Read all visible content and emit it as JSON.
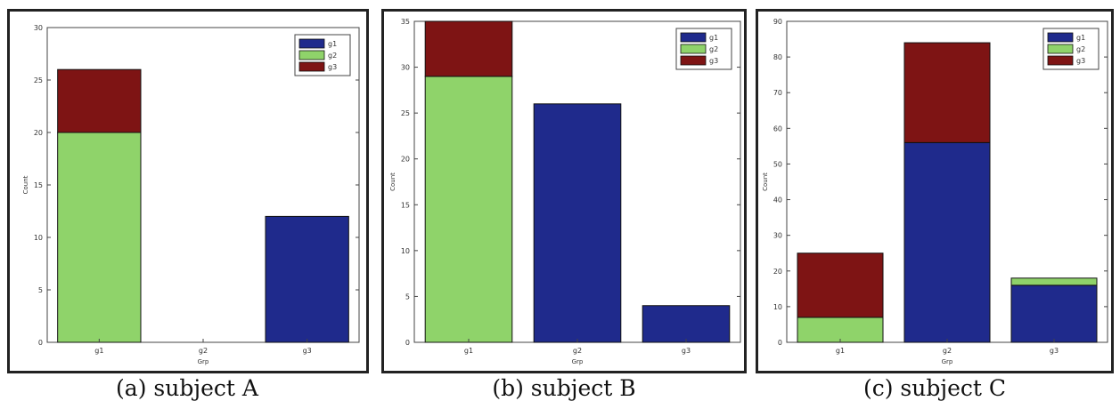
{
  "chart_data": [
    {
      "type": "bar",
      "stacked": true,
      "categories": [
        "g1",
        "g2",
        "g3"
      ],
      "series": [
        {
          "name": "g1",
          "color": "#1f2a8c",
          "values": [
            0,
            0,
            12
          ]
        },
        {
          "name": "g2",
          "color": "#8fd36a",
          "values": [
            20,
            0,
            0
          ]
        },
        {
          "name": "g3",
          "color": "#7e1414",
          "values": [
            6,
            0,
            0
          ]
        }
      ],
      "ylim": [
        0,
        30
      ],
      "yticks": [
        0,
        5,
        10,
        15,
        20,
        25,
        30
      ],
      "xlabel": "Grp",
      "ylabel": "Count",
      "legend_position": "top-right",
      "caption": "(a) subject A"
    },
    {
      "type": "bar",
      "stacked": true,
      "categories": [
        "g1",
        "g2",
        "g3"
      ],
      "series": [
        {
          "name": "g1",
          "color": "#1f2a8c",
          "values": [
            0,
            26,
            4
          ]
        },
        {
          "name": "g2",
          "color": "#8fd36a",
          "values": [
            29,
            0,
            0
          ]
        },
        {
          "name": "g3",
          "color": "#7e1414",
          "values": [
            6,
            0,
            0
          ]
        }
      ],
      "ylim": [
        0,
        35
      ],
      "yticks": [
        0,
        5,
        10,
        15,
        20,
        25,
        30,
        35
      ],
      "xlabel": "Grp",
      "ylabel": "Count",
      "legend_position": "top-right",
      "caption": "(b) subject B"
    },
    {
      "type": "bar",
      "stacked": true,
      "categories": [
        "g1",
        "g2",
        "g3"
      ],
      "series": [
        {
          "name": "g1",
          "color": "#1f2a8c",
          "values": [
            0,
            56,
            16
          ]
        },
        {
          "name": "g2",
          "color": "#8fd36a",
          "values": [
            7,
            0,
            2
          ]
        },
        {
          "name": "g3",
          "color": "#7e1414",
          "values": [
            18,
            28,
            0
          ]
        }
      ],
      "ylim": [
        0,
        90
      ],
      "yticks": [
        0,
        10,
        20,
        30,
        40,
        50,
        60,
        70,
        80,
        90
      ],
      "xlabel": "Grp",
      "ylabel": "Count",
      "legend_position": "top-right",
      "caption": "(c) subject C"
    }
  ]
}
